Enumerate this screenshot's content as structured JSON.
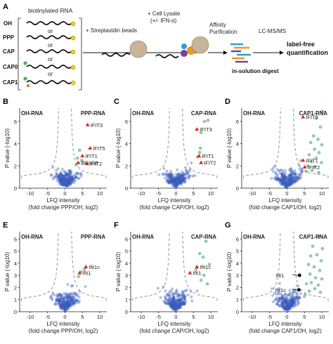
{
  "workflow": {
    "panel_letter": "A",
    "header": "biotinylated RNA",
    "rna_labels": [
      "OH",
      "PPP",
      "CAP",
      "CAP0",
      "CAP1"
    ],
    "or_label": "or",
    "cap_tag": "CAP",
    "step1": "+ Streptavidin beads",
    "step2_line1": "+ Cell Lysate",
    "step2_line2": "(+/- IFN-α)",
    "step3_line1": "Affinity",
    "step3_line2": "Purification",
    "step4": "LC-MS/MS",
    "step5": "in-solution digest",
    "step6_line1": "label-free",
    "step6_line2": "quantification"
  },
  "chart_data": [
    {
      "panel": "B",
      "type": "scatter",
      "left_label": "OH-RNA",
      "right_label": "PPP-RNA",
      "xlabel": "LFQ intensity",
      "xlabel2": "(fold change PPP/OH, log2)",
      "ylabel": "P value (-log10)",
      "xticks": [
        -10,
        -5,
        0,
        5,
        10
      ],
      "yticks": [
        0,
        2,
        4,
        6
      ],
      "xlim": [
        -13,
        12
      ],
      "ylim": [
        0,
        7.2
      ],
      "hits": [
        {
          "label": "IFIT3",
          "x": 6.5,
          "y": 5.7,
          "color": "#e2231a"
        },
        {
          "label": "IFIT5",
          "x": 7.2,
          "y": 3.6,
          "color": "#e2231a"
        },
        {
          "label": "IFIT1",
          "x": 5.0,
          "y": 2.9,
          "color": "#e2231a"
        },
        {
          "label": "IFIT2",
          "x": 6.3,
          "y": 2.2,
          "color": "#e2231a"
        },
        {
          "label": "DDX58",
          "x": 3.8,
          "y": 2.3,
          "color": "#e2231a"
        }
      ],
      "green_points": [
        [
          4.2,
          3.4
        ],
        [
          3.6,
          2.7
        ],
        [
          4.8,
          2.5
        ],
        [
          3.2,
          2.1
        ]
      ]
    },
    {
      "panel": "C",
      "type": "scatter",
      "left_label": "OH-RNA",
      "right_label": "CAP-RNA",
      "xlabel": "LFQ intensity",
      "xlabel2": "(fold change CAP/OH, log2)",
      "ylabel": "P value (-log10)",
      "xticks": [
        -10,
        -5,
        0,
        5,
        10
      ],
      "yticks": [
        0,
        2,
        4,
        6
      ],
      "xlim": [
        -13,
        12
      ],
      "ylim": [
        0,
        7.2
      ],
      "hits": [
        {
          "label": "IFIT3",
          "x": 6.0,
          "y": 5.3,
          "color": "#e2231a"
        },
        {
          "label": "IFIT1",
          "x": 6.6,
          "y": 2.9,
          "color": "#e2231a"
        },
        {
          "label": "IFIT2",
          "x": 7.2,
          "y": 2.3,
          "color": "#e2231a"
        }
      ],
      "green_points": [
        [
          8.2,
          6.0
        ],
        [
          9.2,
          6.1
        ],
        [
          7.2,
          5.0
        ],
        [
          7.0,
          3.6
        ],
        [
          6.8,
          3.2
        ],
        [
          6.2,
          2.8
        ]
      ]
    },
    {
      "panel": "D",
      "type": "scatter",
      "left_label": "OH-RNA",
      "right_label": "CAP1-RNA",
      "xlabel": "LFQ intensity",
      "xlabel2": "(fold change CAP1/OH, log2)",
      "ylabel": "P value (-log10)",
      "xticks": [
        -10,
        -5,
        0,
        5,
        10
      ],
      "yticks": [
        0,
        2,
        4,
        6
      ],
      "xlim": [
        -13,
        12
      ],
      "ylim": [
        0,
        7.2
      ],
      "hits": [
        {
          "label": "IFIT3",
          "x": 4.6,
          "y": 6.4,
          "color": "#e2231a"
        },
        {
          "label": "IFIT1",
          "x": 4.6,
          "y": 2.5,
          "color": "#e2231a"
        },
        {
          "label": "IFIT2",
          "x": 5.1,
          "y": 1.9,
          "color": "#e2231a"
        }
      ],
      "green_points": [
        [
          10.2,
          6.9
        ],
        [
          8.4,
          6.3
        ],
        [
          9.6,
          5.5
        ],
        [
          7.6,
          4.7
        ],
        [
          8.9,
          4.4
        ],
        [
          6.8,
          4.1
        ],
        [
          10.0,
          3.9
        ],
        [
          7.9,
          3.5
        ],
        [
          9.2,
          3.2
        ],
        [
          6.4,
          3.0
        ],
        [
          8.4,
          2.7
        ],
        [
          7.0,
          2.4
        ],
        [
          9.9,
          2.3
        ],
        [
          6.0,
          2.0
        ],
        [
          8.0,
          1.9
        ],
        [
          7.2,
          1.6
        ],
        [
          5.6,
          1.5
        ],
        [
          9.1,
          1.4
        ]
      ]
    },
    {
      "panel": "E",
      "type": "scatter",
      "left_label": "OH-RNA",
      "right_label": "PPP-RNA",
      "xlabel": "LFQ intensity",
      "xlabel2": "(fold change PPP/OH, log2)",
      "ylabel": "P value (-log10)",
      "xticks": [
        -10,
        -5,
        0,
        5,
        10
      ],
      "yticks": [
        0,
        1,
        2,
        3,
        4,
        5,
        6
      ],
      "xlim": [
        -13,
        12
      ],
      "ylim": [
        0,
        6.6
      ],
      "hits": [
        {
          "label": "Ifit1c",
          "x": 6.0,
          "y": 3.7,
          "color": "#e2231a"
        },
        {
          "label": "Ifit1",
          "x": 4.2,
          "y": 3.2,
          "color": "#e2231a"
        }
      ],
      "green_points": [
        [
          5.6,
          3.5
        ],
        [
          4.6,
          3.3
        ],
        [
          3.9,
          2.9
        ]
      ]
    },
    {
      "panel": "F",
      "type": "scatter",
      "left_label": "OH-RNA",
      "right_label": "CAP-RNA",
      "xlabel": "LFQ intensity",
      "xlabel2": "(fold change CAP/OH, log2)",
      "ylabel": "P value (-log10)",
      "xticks": [
        -10,
        -5,
        0,
        5,
        10
      ],
      "yticks": [
        0,
        1,
        2,
        3,
        4,
        5,
        6
      ],
      "xlim": [
        -13,
        12
      ],
      "ylim": [
        0,
        6.6
      ],
      "hits": [
        {
          "label": "Ifit1c",
          "x": 6.0,
          "y": 3.7,
          "color": "#e2231a"
        },
        {
          "label": "Ifit1",
          "x": 4.0,
          "y": 3.2,
          "color": "#e2231a"
        }
      ],
      "green_points": [
        [
          8.6,
          5.8
        ],
        [
          6.8,
          4.8
        ],
        [
          7.8,
          4.5
        ],
        [
          9.6,
          3.9
        ],
        [
          8.0,
          3.0
        ],
        [
          9.0,
          2.3
        ],
        [
          7.2,
          2.6
        ],
        [
          5.8,
          3.5
        ]
      ]
    },
    {
      "panel": "G",
      "type": "scatter",
      "left_label": "OH-RNA",
      "right_label": "CAP1-RNA",
      "xlabel": "LFQ intensity",
      "xlabel2": "(fold change CAP1/OH, log2)",
      "ylabel": "P value (-log10)",
      "xticks": [
        -10,
        -5,
        0,
        5,
        10
      ],
      "yticks": [
        0,
        1,
        2,
        3,
        4,
        5,
        6
      ],
      "xlim": [
        -13,
        12
      ],
      "ylim": [
        0,
        6.6
      ],
      "hits": [
        {
          "label": "Ifit1",
          "x": 3.6,
          "y": 3.0,
          "color": "#111111"
        },
        {
          "label": "Ifit1c",
          "x": 3.4,
          "y": 1.8,
          "color": "#111111"
        }
      ],
      "green_points": [
        [
          9.2,
          6.2
        ],
        [
          7.4,
          5.4
        ],
        [
          10.2,
          5.2
        ],
        [
          6.8,
          4.6
        ],
        [
          8.6,
          4.7
        ],
        [
          9.8,
          4.2
        ],
        [
          6.2,
          3.9
        ],
        [
          7.8,
          3.7
        ],
        [
          9.4,
          3.4
        ],
        [
          6.6,
          3.1
        ],
        [
          8.2,
          2.8
        ],
        [
          10.0,
          2.7
        ],
        [
          7.0,
          2.4
        ],
        [
          5.6,
          2.3
        ],
        [
          9.0,
          2.2
        ],
        [
          8.0,
          1.9
        ],
        [
          6.4,
          1.7
        ],
        [
          9.6,
          1.6
        ],
        [
          5.2,
          1.4
        ]
      ]
    }
  ]
}
